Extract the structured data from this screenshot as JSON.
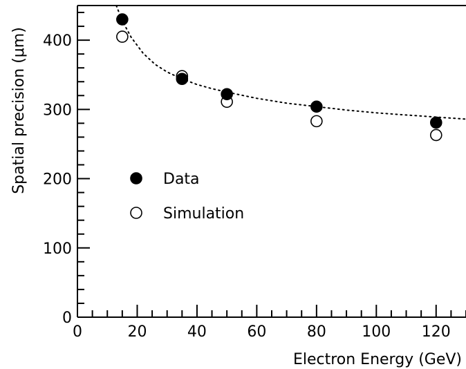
{
  "chart_data": {
    "type": "scatter",
    "xlabel": "Electron Energy (GeV)",
    "ylabel": "Spatial precision (μm)",
    "xlim": [
      0,
      130
    ],
    "ylim": [
      0,
      450
    ],
    "xticks": [
      0,
      20,
      40,
      60,
      80,
      100,
      120
    ],
    "yticks": [
      0,
      100,
      200,
      300,
      400
    ],
    "xtick_labels": [
      "0",
      "20",
      "40",
      "60",
      "80",
      "100",
      "120"
    ],
    "ytick_labels": [
      "0",
      "100",
      "200",
      "300",
      "400"
    ],
    "grid": false,
    "legend_position": "left-center",
    "series": [
      {
        "name": "Data",
        "marker": "filled-circle",
        "x": [
          15,
          35,
          50,
          80,
          120
        ],
        "y": [
          430,
          344,
          322,
          304,
          281
        ]
      },
      {
        "name": "Simulation",
        "marker": "open-circle",
        "x": [
          15,
          35,
          50,
          80,
          120
        ],
        "y": [
          405,
          348,
          311,
          283,
          263
        ]
      }
    ],
    "fit_curve": {
      "style": "dotted",
      "x": [
        13,
        15,
        18,
        22,
        26,
        30,
        35,
        40,
        45,
        50,
        60,
        70,
        80,
        90,
        100,
        110,
        120,
        130
      ],
      "y": [
        450,
        428,
        404,
        381,
        365,
        354,
        344,
        336,
        330,
        325,
        316,
        309,
        304,
        299,
        295,
        292,
        289,
        286
      ]
    }
  }
}
